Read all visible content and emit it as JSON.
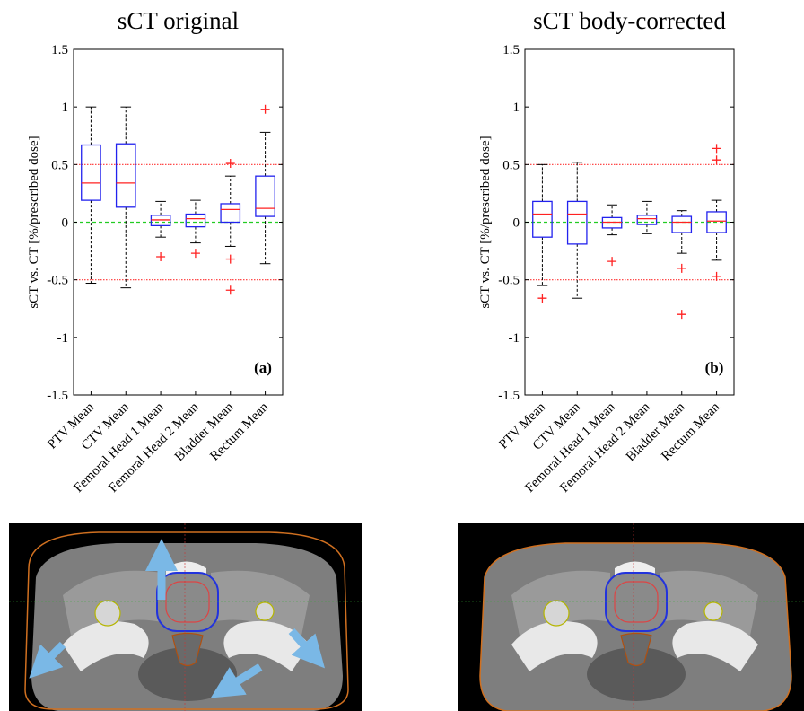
{
  "chart_data": [
    {
      "type": "box",
      "title": "sCT original",
      "panel_label": "(a)",
      "y_label": "sCT vs. CT [%/prescribed dose]",
      "categories": [
        "PTV Mean",
        "CTV Mean",
        "Femoral Head 1 Mean",
        "Femoral Head 2 Mean",
        "Bladder Mean",
        "Rectum Mean"
      ],
      "boxes": [
        {
          "whisker_low": -0.53,
          "q1": 0.19,
          "median": 0.34,
          "q3": 0.67,
          "whisker_high": 1.0,
          "outliers": []
        },
        {
          "whisker_low": -0.57,
          "q1": 0.13,
          "median": 0.34,
          "q3": 0.68,
          "whisker_high": 1.0,
          "outliers": []
        },
        {
          "whisker_low": -0.13,
          "q1": -0.03,
          "median": 0.02,
          "q3": 0.06,
          "whisker_high": 0.18,
          "outliers": [
            -0.3
          ]
        },
        {
          "whisker_low": -0.18,
          "q1": -0.04,
          "median": 0.03,
          "q3": 0.07,
          "whisker_high": 0.19,
          "outliers": [
            -0.27
          ]
        },
        {
          "whisker_low": -0.21,
          "q1": 0.0,
          "median": 0.11,
          "q3": 0.16,
          "whisker_high": 0.4,
          "outliers": [
            0.51,
            -0.32,
            -0.59
          ]
        },
        {
          "whisker_low": -0.36,
          "q1": 0.05,
          "median": 0.12,
          "q3": 0.4,
          "whisker_high": 0.78,
          "outliers": [
            0.98
          ]
        }
      ],
      "box_color": "#2222ee",
      "median_color": "#ff2222",
      "whisker_color": "#000000",
      "outlier_color": "#ff2222",
      "reference_lines": [
        {
          "value": 0.5,
          "color": "#ff3333"
        },
        {
          "value": 0,
          "color": "#22cc22"
        },
        {
          "value": -0.5,
          "color": "#ff3333"
        }
      ],
      "ylim": [
        -1.5,
        1.5
      ],
      "yticks": [
        -1.5,
        -1,
        -0.5,
        0,
        0.5,
        1,
        1.5
      ]
    },
    {
      "type": "box",
      "title": "sCT body-corrected",
      "panel_label": "(b)",
      "y_label": "sCT vs. CT [%/prescribed dose]",
      "categories": [
        "PTV Mean",
        "CTV Mean",
        "Femoral Head 1 Mean",
        "Femoral Head 2 Mean",
        "Bladder Mean",
        "Rectum Mean"
      ],
      "boxes": [
        {
          "whisker_low": -0.55,
          "q1": -0.13,
          "median": 0.07,
          "q3": 0.18,
          "whisker_high": 0.5,
          "outliers": [
            -0.66
          ]
        },
        {
          "whisker_low": -0.66,
          "q1": -0.19,
          "median": 0.07,
          "q3": 0.18,
          "whisker_high": 0.52,
          "outliers": []
        },
        {
          "whisker_low": -0.11,
          "q1": -0.05,
          "median": 0.0,
          "q3": 0.04,
          "whisker_high": 0.15,
          "outliers": [
            -0.34
          ]
        },
        {
          "whisker_low": -0.1,
          "q1": -0.02,
          "median": 0.03,
          "q3": 0.06,
          "whisker_high": 0.18,
          "outliers": []
        },
        {
          "whisker_low": -0.27,
          "q1": -0.09,
          "median": 0.0,
          "q3": 0.05,
          "whisker_high": 0.1,
          "outliers": [
            -0.4,
            -0.8
          ]
        },
        {
          "whisker_low": -0.33,
          "q1": -0.09,
          "median": 0.01,
          "q3": 0.09,
          "whisker_high": 0.19,
          "outliers": [
            0.64,
            0.54,
            -0.47
          ]
        }
      ],
      "box_color": "#2222ee",
      "median_color": "#ff2222",
      "whisker_color": "#000000",
      "outlier_color": "#ff2222",
      "reference_lines": [
        {
          "value": 0.5,
          "color": "#ff3333"
        },
        {
          "value": 0,
          "color": "#22cc22"
        },
        {
          "value": -0.5,
          "color": "#ff3333"
        }
      ],
      "ylim": [
        -1.5,
        1.5
      ],
      "yticks": [
        -1.5,
        -1,
        -0.5,
        0,
        0.5,
        1,
        1.5
      ]
    }
  ]
}
